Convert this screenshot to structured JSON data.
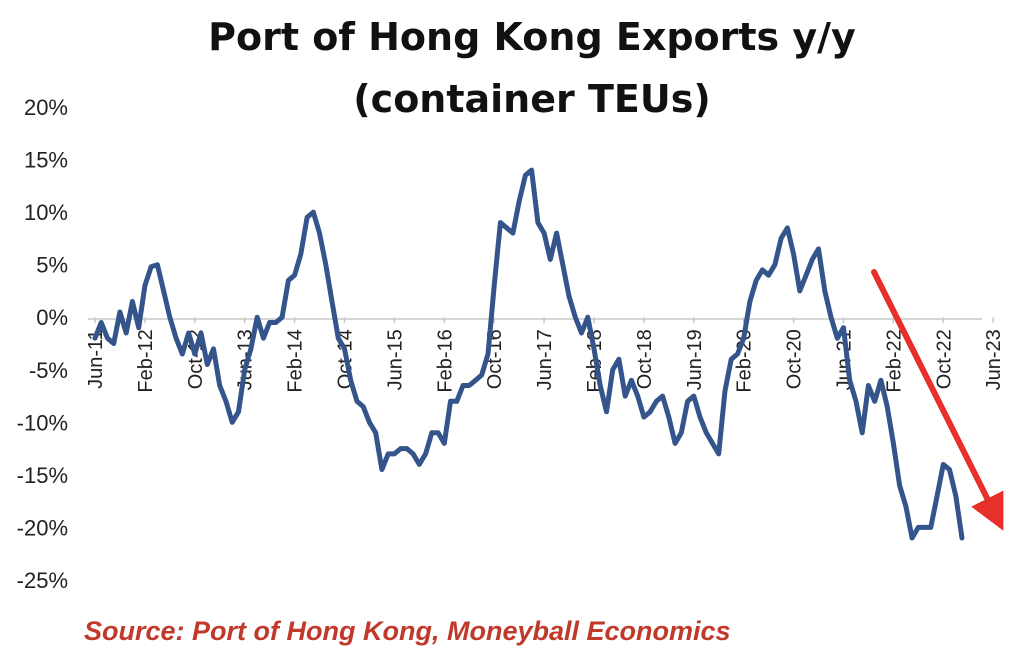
{
  "chart_data": {
    "type": "line",
    "title": "Port of Hong Kong Exports y/y",
    "subtitle": "(container TEUs)",
    "xlabel": "",
    "ylabel": "",
    "ylim": [
      -25,
      20
    ],
    "yticks": [
      "20%",
      "15%",
      "10%",
      "5%",
      "0%",
      "-5%",
      "-10%",
      "-15%",
      "-20%",
      "-25%"
    ],
    "xticks": [
      "Jun-11",
      "Feb-12",
      "Oct-12",
      "Jun-13",
      "Feb-14",
      "Oct-14",
      "Jun-15",
      "Feb-16",
      "Oct-16",
      "Jun-17",
      "Feb-18",
      "Oct-18",
      "Jun-19",
      "Feb-20",
      "Oct-20",
      "Jun-21",
      "Feb-22",
      "Oct-22",
      "Jun-23"
    ],
    "grid": false,
    "legend": "none",
    "colors": {
      "line": "#34558b",
      "arrow": "#e8302a",
      "source": "#c0392b"
    },
    "annotation": "downward trend arrow",
    "series": [
      {
        "name": "",
        "x_start": "Jun-11",
        "x_end": "Jul-23",
        "values": [
          -2,
          -0.5,
          -2,
          -2.5,
          0.5,
          -1.5,
          1.5,
          -1,
          3,
          4.8,
          5,
          2.5,
          0,
          -2,
          -3.5,
          -1.5,
          -3.5,
          -1.5,
          -4.5,
          -3,
          -6.5,
          -8,
          -10,
          -9,
          -5,
          -3,
          0,
          -2,
          -0.5,
          -0.5,
          0,
          3.5,
          4,
          6,
          9.5,
          10,
          8,
          5,
          1.5,
          -2,
          -3,
          -6,
          -8,
          -8.5,
          -10,
          -11,
          -14.5,
          -13,
          -13,
          -12.5,
          -12.5,
          -13,
          -14,
          -13,
          -11,
          -11,
          -12,
          -8,
          -8,
          -6.5,
          -6.5,
          -6,
          -5.5,
          -3.5,
          3,
          9,
          8.5,
          8,
          11,
          13.5,
          14,
          9,
          8,
          5.5,
          8,
          5,
          2,
          0,
          -1.5,
          0,
          -3,
          -6.5,
          -9,
          -5,
          -4,
          -7.5,
          -6,
          -7.5,
          -9.5,
          -9,
          -8,
          -7.5,
          -9.5,
          -12,
          -11,
          -8,
          -7.5,
          -9.5,
          -11,
          -12,
          -13,
          -7,
          -4,
          -3.5,
          -2,
          1.5,
          3.5,
          4.5,
          4,
          5,
          7.5,
          8.5,
          6,
          2.5,
          4,
          5.5,
          6.5,
          2.5,
          0,
          -2,
          -1,
          -6,
          -8,
          -11,
          -6.5,
          -8,
          -6,
          -8.5,
          -12,
          -16,
          -18,
          -21,
          -20,
          -20,
          -20,
          -17,
          -14,
          -14.5,
          -17,
          -21
        ]
      }
    ]
  },
  "source_note": "Source: Port of Hong Kong, Moneyball Economics"
}
